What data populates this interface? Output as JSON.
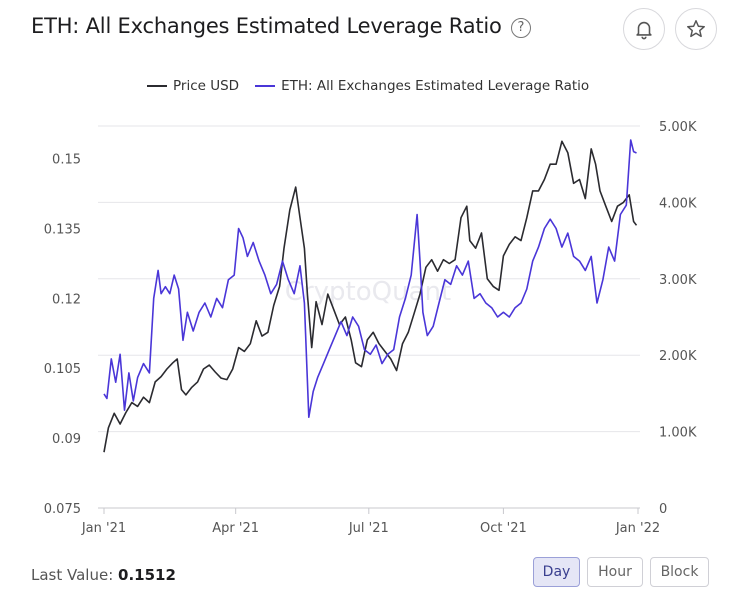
{
  "header": {
    "title": "ETH: All Exchanges Estimated Leverage Ratio",
    "help_glyph": "?",
    "bell_icon": "bell-icon",
    "star_icon": "star-icon"
  },
  "footer": {
    "last_value_label": "Last Value:",
    "last_value": "0.1512",
    "buttons": [
      "Day",
      "Hour",
      "Block"
    ],
    "active_button": "Day"
  },
  "chart_data": {
    "type": "line",
    "watermark": "CryptoQuant",
    "legend_position": "top-center",
    "grid": true,
    "x_ticks": [
      "Jan '21",
      "Apr '21",
      "Jul '21",
      "Oct '21",
      "Jan '22"
    ],
    "x_range": [
      "2021-01-01",
      "2022-01-01"
    ],
    "y_left": {
      "ticks": [
        "0.075",
        "0.09",
        "0.105",
        "0.12",
        "0.135",
        "0.15"
      ],
      "range": [
        0.075,
        0.157
      ]
    },
    "y_right": {
      "ticks": [
        "0",
        "1.00K",
        "2.00K",
        "3.00K",
        "4.00K",
        "5.00K"
      ],
      "range": [
        0,
        5000
      ]
    },
    "series": [
      {
        "name": "Price USD",
        "axis": "right",
        "color": "#2b2b30",
        "points": [
          [
            "2021-01-01",
            730
          ],
          [
            "2021-01-04",
            1050
          ],
          [
            "2021-01-08",
            1240
          ],
          [
            "2021-01-12",
            1100
          ],
          [
            "2021-01-16",
            1250
          ],
          [
            "2021-01-20",
            1380
          ],
          [
            "2021-01-24",
            1330
          ],
          [
            "2021-01-28",
            1450
          ],
          [
            "2021-02-01",
            1380
          ],
          [
            "2021-02-05",
            1650
          ],
          [
            "2021-02-09",
            1720
          ],
          [
            "2021-02-13",
            1820
          ],
          [
            "2021-02-17",
            1900
          ],
          [
            "2021-02-20",
            1950
          ],
          [
            "2021-02-23",
            1550
          ],
          [
            "2021-02-26",
            1480
          ],
          [
            "2021-03-02",
            1580
          ],
          [
            "2021-03-06",
            1650
          ],
          [
            "2021-03-10",
            1820
          ],
          [
            "2021-03-14",
            1870
          ],
          [
            "2021-03-18",
            1780
          ],
          [
            "2021-03-22",
            1700
          ],
          [
            "2021-03-26",
            1680
          ],
          [
            "2021-03-30",
            1820
          ],
          [
            "2021-04-03",
            2100
          ],
          [
            "2021-04-07",
            2050
          ],
          [
            "2021-04-11",
            2150
          ],
          [
            "2021-04-15",
            2450
          ],
          [
            "2021-04-19",
            2250
          ],
          [
            "2021-04-23",
            2300
          ],
          [
            "2021-04-27",
            2650
          ],
          [
            "2021-05-01",
            2900
          ],
          [
            "2021-05-04",
            3400
          ],
          [
            "2021-05-08",
            3900
          ],
          [
            "2021-05-12",
            4200
          ],
          [
            "2021-05-15",
            3800
          ],
          [
            "2021-05-18",
            3400
          ],
          [
            "2021-05-20",
            2800
          ],
          [
            "2021-05-23",
            2100
          ],
          [
            "2021-05-26",
            2700
          ],
          [
            "2021-05-30",
            2400
          ],
          [
            "2021-06-03",
            2800
          ],
          [
            "2021-06-07",
            2600
          ],
          [
            "2021-06-11",
            2400
          ],
          [
            "2021-06-15",
            2500
          ],
          [
            "2021-06-19",
            2200
          ],
          [
            "2021-06-22",
            1900
          ],
          [
            "2021-06-26",
            1850
          ],
          [
            "2021-06-30",
            2200
          ],
          [
            "2021-07-04",
            2300
          ],
          [
            "2021-07-08",
            2150
          ],
          [
            "2021-07-12",
            2050
          ],
          [
            "2021-07-16",
            1950
          ],
          [
            "2021-07-20",
            1800
          ],
          [
            "2021-07-24",
            2150
          ],
          [
            "2021-07-28",
            2300
          ],
          [
            "2021-08-01",
            2550
          ],
          [
            "2021-08-05",
            2800
          ],
          [
            "2021-08-09",
            3150
          ],
          [
            "2021-08-13",
            3250
          ],
          [
            "2021-08-17",
            3100
          ],
          [
            "2021-08-21",
            3250
          ],
          [
            "2021-08-25",
            3200
          ],
          [
            "2021-08-29",
            3250
          ],
          [
            "2021-09-02",
            3800
          ],
          [
            "2021-09-06",
            3950
          ],
          [
            "2021-09-08",
            3500
          ],
          [
            "2021-09-12",
            3400
          ],
          [
            "2021-09-16",
            3600
          ],
          [
            "2021-09-20",
            3000
          ],
          [
            "2021-09-24",
            2900
          ],
          [
            "2021-09-28",
            2850
          ],
          [
            "2021-10-01",
            3300
          ],
          [
            "2021-10-05",
            3450
          ],
          [
            "2021-10-09",
            3550
          ],
          [
            "2021-10-13",
            3500
          ],
          [
            "2021-10-17",
            3800
          ],
          [
            "2021-10-21",
            4150
          ],
          [
            "2021-10-25",
            4150
          ],
          [
            "2021-10-29",
            4300
          ],
          [
            "2021-11-02",
            4500
          ],
          [
            "2021-11-06",
            4500
          ],
          [
            "2021-11-10",
            4800
          ],
          [
            "2021-11-14",
            4650
          ],
          [
            "2021-11-18",
            4250
          ],
          [
            "2021-11-22",
            4300
          ],
          [
            "2021-11-26",
            4050
          ],
          [
            "2021-11-30",
            4700
          ],
          [
            "2021-12-03",
            4500
          ],
          [
            "2021-12-06",
            4150
          ],
          [
            "2021-12-10",
            3950
          ],
          [
            "2021-12-14",
            3750
          ],
          [
            "2021-12-18",
            3950
          ],
          [
            "2021-12-22",
            4000
          ],
          [
            "2021-12-26",
            4100
          ],
          [
            "2021-12-29",
            3750
          ],
          [
            "2021-12-31",
            3700
          ]
        ]
      },
      {
        "name": "ETH: All Exchanges Estimated Leverage Ratio",
        "axis": "left",
        "color": "#4a36d8",
        "points": [
          [
            "2021-01-01",
            0.0995
          ],
          [
            "2021-01-03",
            0.0985
          ],
          [
            "2021-01-06",
            0.107
          ],
          [
            "2021-01-09",
            0.102
          ],
          [
            "2021-01-12",
            0.108
          ],
          [
            "2021-01-15",
            0.096
          ],
          [
            "2021-01-18",
            0.104
          ],
          [
            "2021-01-21",
            0.098
          ],
          [
            "2021-01-24",
            0.103
          ],
          [
            "2021-01-28",
            0.106
          ],
          [
            "2021-02-01",
            0.104
          ],
          [
            "2021-02-04",
            0.12
          ],
          [
            "2021-02-07",
            0.126
          ],
          [
            "2021-02-09",
            0.121
          ],
          [
            "2021-02-12",
            0.1225
          ],
          [
            "2021-02-15",
            0.121
          ],
          [
            "2021-02-18",
            0.125
          ],
          [
            "2021-02-21",
            0.122
          ],
          [
            "2021-02-24",
            0.111
          ],
          [
            "2021-02-27",
            0.117
          ],
          [
            "2021-03-03",
            0.113
          ],
          [
            "2021-03-07",
            0.117
          ],
          [
            "2021-03-11",
            0.119
          ],
          [
            "2021-03-15",
            0.116
          ],
          [
            "2021-03-19",
            0.12
          ],
          [
            "2021-03-23",
            0.118
          ],
          [
            "2021-03-27",
            0.124
          ],
          [
            "2021-03-31",
            0.125
          ],
          [
            "2021-04-03",
            0.135
          ],
          [
            "2021-04-06",
            0.133
          ],
          [
            "2021-04-09",
            0.129
          ],
          [
            "2021-04-13",
            0.132
          ],
          [
            "2021-04-17",
            0.128
          ],
          [
            "2021-04-21",
            0.125
          ],
          [
            "2021-04-25",
            0.121
          ],
          [
            "2021-04-29",
            0.123
          ],
          [
            "2021-05-03",
            0.128
          ],
          [
            "2021-05-07",
            0.124
          ],
          [
            "2021-05-11",
            0.121
          ],
          [
            "2021-05-15",
            0.127
          ],
          [
            "2021-05-18",
            0.119
          ],
          [
            "2021-05-21",
            0.0945
          ],
          [
            "2021-05-24",
            0.1
          ],
          [
            "2021-05-27",
            0.103
          ],
          [
            "2021-05-31",
            0.106
          ],
          [
            "2021-06-04",
            0.109
          ],
          [
            "2021-06-08",
            0.112
          ],
          [
            "2021-06-12",
            0.115
          ],
          [
            "2021-06-16",
            0.112
          ],
          [
            "2021-06-20",
            0.116
          ],
          [
            "2021-06-24",
            0.114
          ],
          [
            "2021-06-28",
            0.109
          ],
          [
            "2021-07-02",
            0.108
          ],
          [
            "2021-07-06",
            0.11
          ],
          [
            "2021-07-10",
            0.106
          ],
          [
            "2021-07-14",
            0.108
          ],
          [
            "2021-07-18",
            0.109
          ],
          [
            "2021-07-22",
            0.116
          ],
          [
            "2021-07-26",
            0.12
          ],
          [
            "2021-07-30",
            0.125
          ],
          [
            "2021-08-03",
            0.138
          ],
          [
            "2021-08-05",
            0.128
          ],
          [
            "2021-08-07",
            0.117
          ],
          [
            "2021-08-10",
            0.112
          ],
          [
            "2021-08-14",
            0.114
          ],
          [
            "2021-08-18",
            0.119
          ],
          [
            "2021-08-22",
            0.124
          ],
          [
            "2021-08-26",
            0.123
          ],
          [
            "2021-08-30",
            0.127
          ],
          [
            "2021-09-03",
            0.125
          ],
          [
            "2021-09-07",
            0.128
          ],
          [
            "2021-09-11",
            0.12
          ],
          [
            "2021-09-15",
            0.121
          ],
          [
            "2021-09-19",
            0.119
          ],
          [
            "2021-09-23",
            0.118
          ],
          [
            "2021-09-27",
            0.116
          ],
          [
            "2021-10-01",
            0.117
          ],
          [
            "2021-10-05",
            0.116
          ],
          [
            "2021-10-09",
            0.118
          ],
          [
            "2021-10-13",
            0.119
          ],
          [
            "2021-10-17",
            0.122
          ],
          [
            "2021-10-21",
            0.128
          ],
          [
            "2021-10-25",
            0.131
          ],
          [
            "2021-10-29",
            0.135
          ],
          [
            "2021-11-02",
            0.137
          ],
          [
            "2021-11-06",
            0.135
          ],
          [
            "2021-11-10",
            0.131
          ],
          [
            "2021-11-14",
            0.134
          ],
          [
            "2021-11-18",
            0.129
          ],
          [
            "2021-11-22",
            0.128
          ],
          [
            "2021-11-26",
            0.126
          ],
          [
            "2021-11-30",
            0.129
          ],
          [
            "2021-12-04",
            0.119
          ],
          [
            "2021-12-08",
            0.124
          ],
          [
            "2021-12-12",
            0.131
          ],
          [
            "2021-12-16",
            0.128
          ],
          [
            "2021-12-20",
            0.138
          ],
          [
            "2021-12-24",
            0.14
          ],
          [
            "2021-12-27",
            0.154
          ],
          [
            "2021-12-29",
            0.1515
          ],
          [
            "2021-12-31",
            0.1512
          ]
        ]
      }
    ]
  }
}
